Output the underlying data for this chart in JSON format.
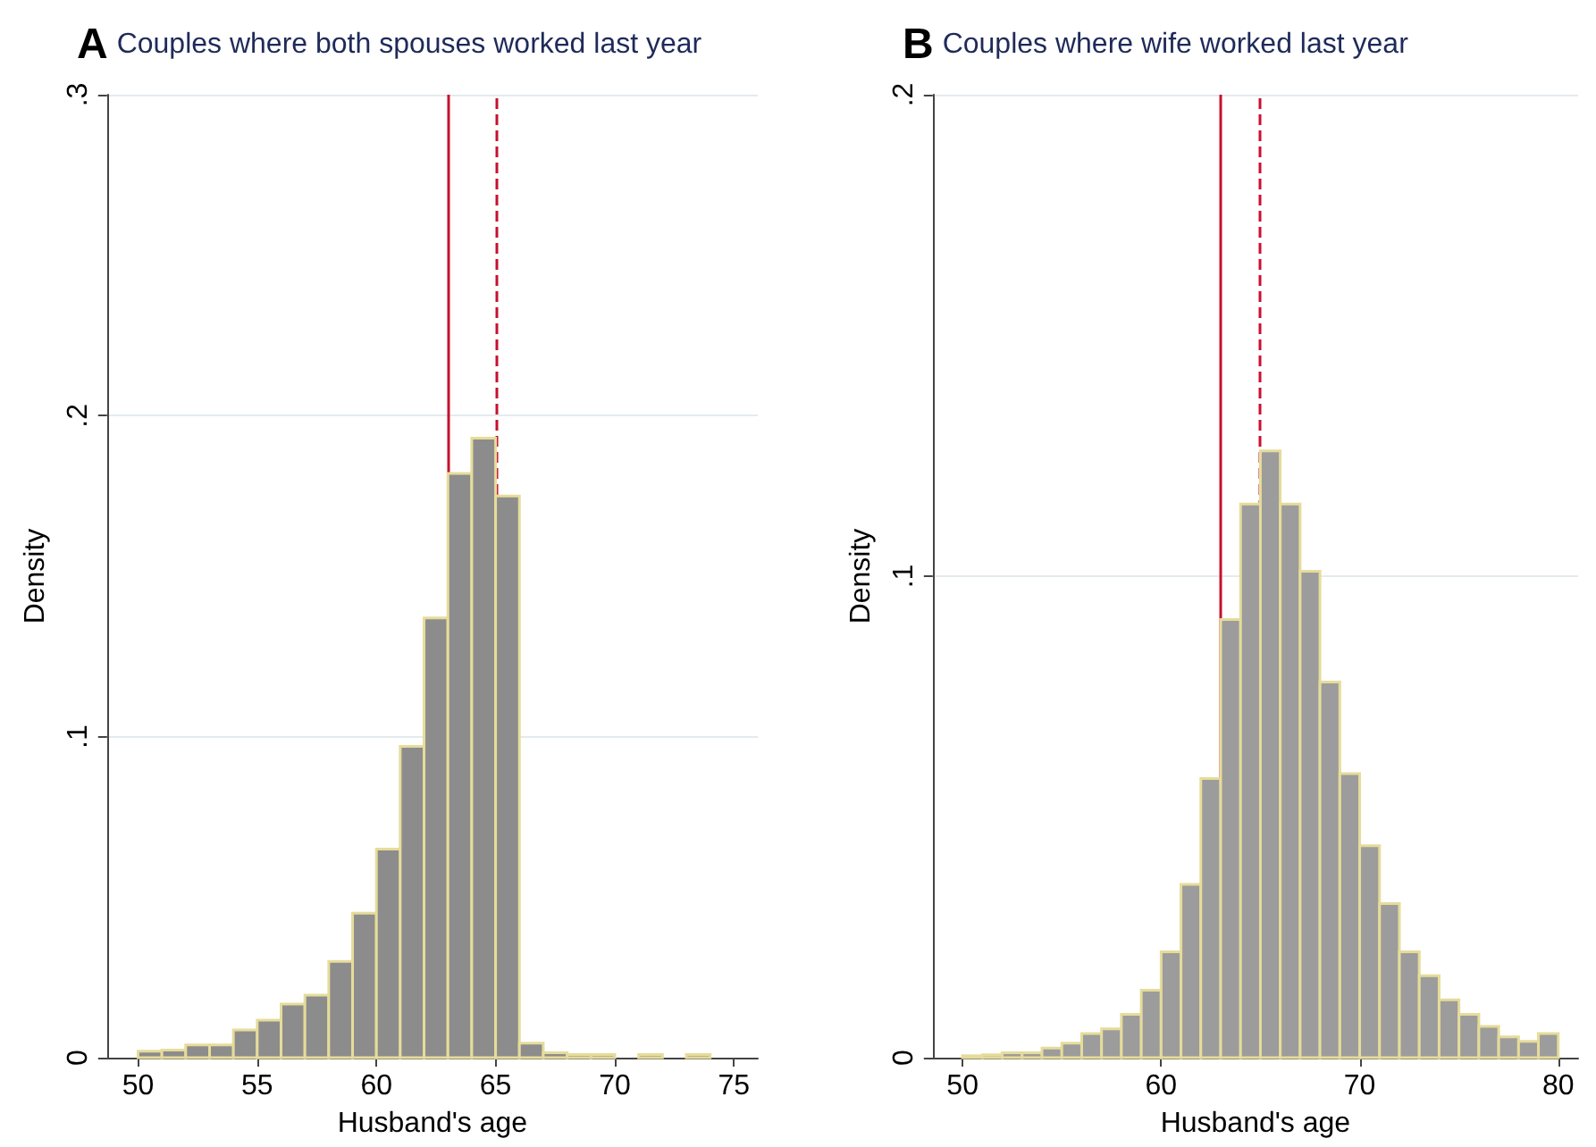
{
  "chart_data": [
    {
      "type": "histogram",
      "title": "A",
      "subtitle": "Couples where both spouses worked last year",
      "xlabel": "Husband's age",
      "ylabel": "Density",
      "color": "#8c8c8c",
      "bins": [
        50,
        51,
        52,
        53,
        54,
        55,
        56,
        57,
        58,
        59,
        60,
        61,
        62,
        63,
        64,
        65,
        66,
        67,
        68,
        69,
        70,
        71,
        72,
        73,
        74
      ],
      "values": [
        0.002,
        0.0024,
        0.004,
        0.004,
        0.0086,
        0.0117,
        0.0167,
        0.0195,
        0.03,
        0.045,
        0.065,
        0.097,
        0.137,
        0.182,
        0.193,
        0.175,
        0.0045,
        0.0015,
        0.001,
        0.001,
        0,
        0.001,
        0,
        0.001
      ],
      "xlim": [
        48.7,
        76
      ],
      "xticks": [
        50,
        55,
        60,
        65,
        70,
        75
      ],
      "ylim": [
        0,
        0.3
      ],
      "yticks": [
        0,
        {
          "value": 0.1,
          "label": ".1"
        },
        {
          "value": 0.2,
          "label": ".2"
        },
        {
          "value": 0.3,
          "label": ".3"
        }
      ],
      "grid": "y",
      "ref_lines": [
        {
          "axis": "x",
          "value": 63,
          "color": "#c8102e",
          "line_style": "solid"
        },
        {
          "axis": "x",
          "value": 65,
          "color": "#c8102e",
          "line_style": "dashed"
        }
      ]
    },
    {
      "type": "histogram",
      "title": "B",
      "subtitle": "Couples where wife worked last year",
      "xlabel": "Husband's age",
      "ylabel": "Density",
      "color": "#9c9c9c",
      "bins": [
        50,
        51,
        52,
        53,
        54,
        55,
        56,
        57,
        58,
        59,
        60,
        61,
        62,
        63,
        64,
        65,
        66,
        67,
        68,
        69,
        70,
        71,
        72,
        73,
        74,
        75,
        76,
        77,
        78,
        79,
        80
      ],
      "values": [
        0.0004,
        0.0006,
        0.001,
        0.001,
        0.002,
        0.003,
        0.005,
        0.006,
        0.009,
        0.014,
        0.022,
        0.036,
        0.058,
        0.091,
        0.115,
        0.126,
        0.115,
        0.101,
        0.078,
        0.059,
        0.044,
        0.032,
        0.022,
        0.017,
        0.012,
        0.009,
        0.0065,
        0.0043,
        0.0034,
        0.005
      ],
      "xlim": [
        48.5,
        81
      ],
      "xticks": [
        50,
        60,
        70,
        80
      ],
      "ylim": [
        0,
        0.2
      ],
      "yticks": [
        0,
        {
          "value": 0.1,
          "label": ".1"
        },
        {
          "value": 0.2,
          "label": ".2"
        }
      ],
      "grid": "y",
      "ref_lines": [
        {
          "axis": "x",
          "value": 63,
          "color": "#c8102e",
          "line_style": "solid"
        },
        {
          "axis": "x",
          "value": 65,
          "color": "#c8102e",
          "line_style": "dashed"
        }
      ]
    }
  ]
}
